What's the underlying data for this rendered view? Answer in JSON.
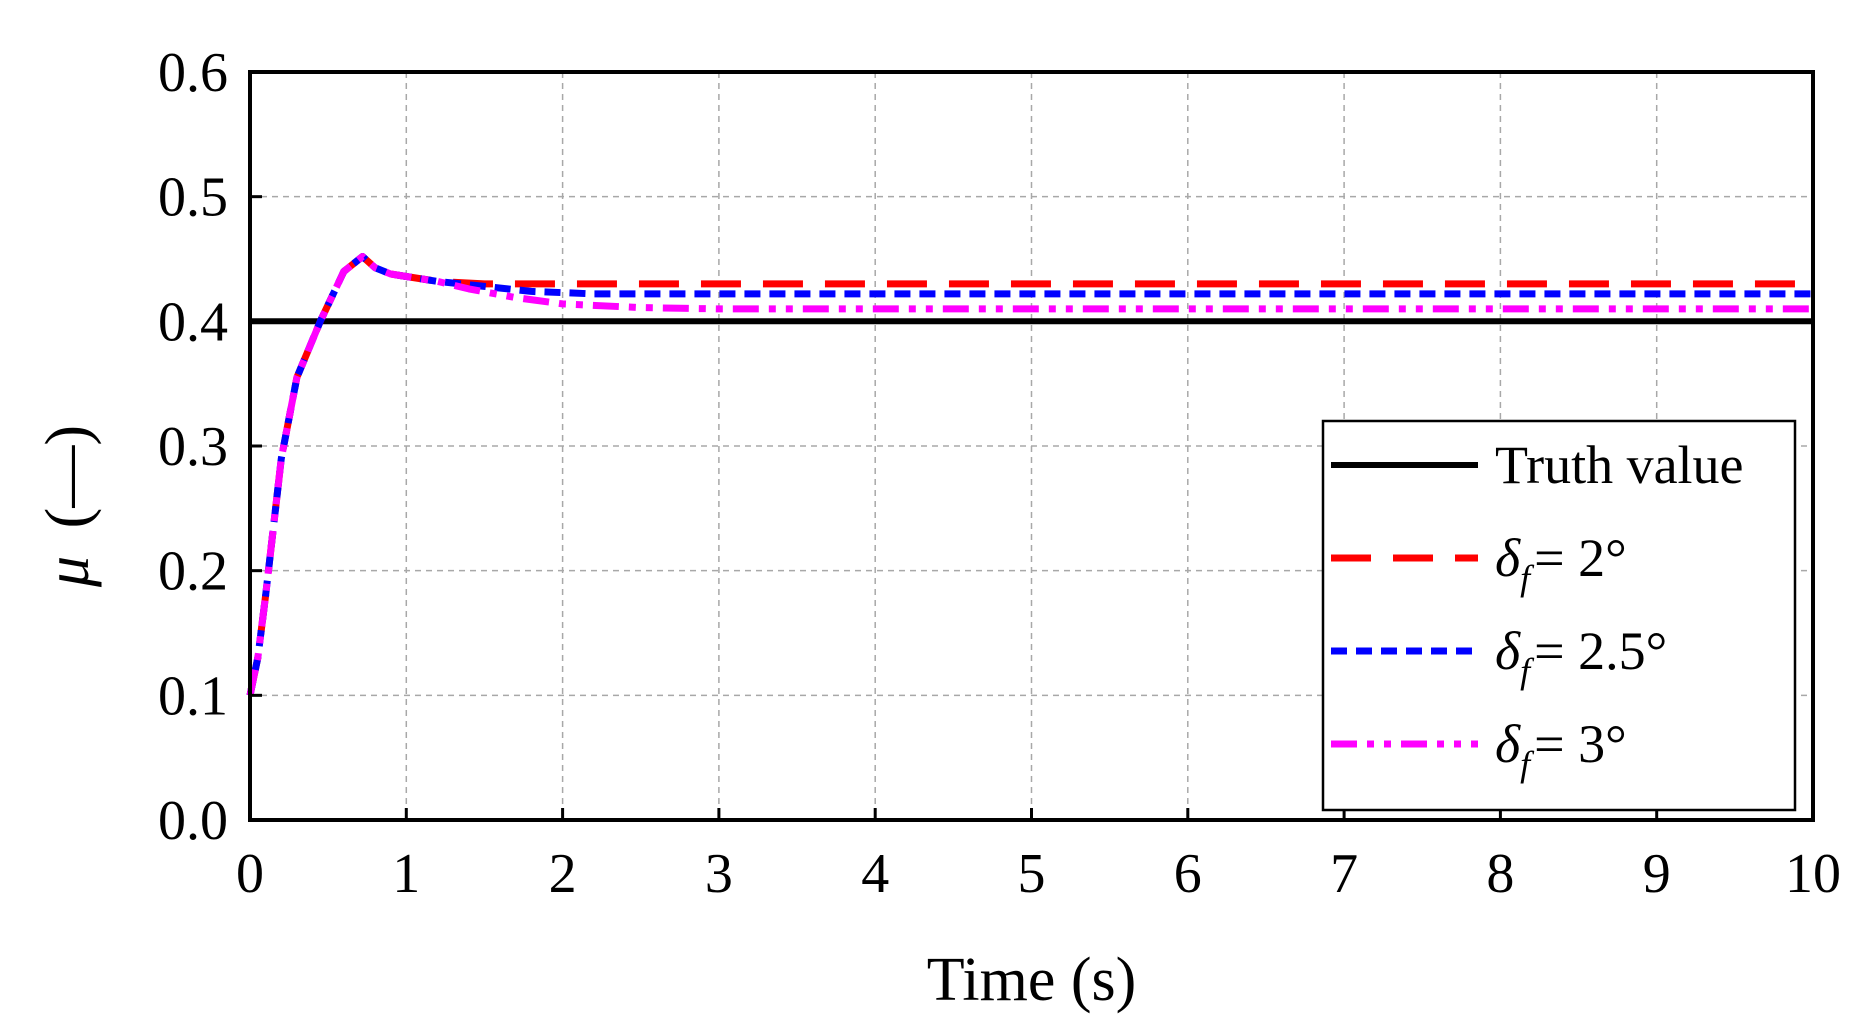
{
  "chart_data": {
    "type": "line",
    "title": "",
    "xlabel": "Time (s)",
    "ylabel_symbol": "μ",
    "ylabel_unit": "(—)",
    "xlim": [
      0,
      10
    ],
    "ylim": [
      0,
      0.6
    ],
    "xticks": [
      0,
      1,
      2,
      3,
      4,
      5,
      6,
      7,
      8,
      9,
      10
    ],
    "yticks": [
      0.0,
      0.1,
      0.2,
      0.3,
      0.4,
      0.5,
      0.6
    ],
    "xtick_labels": [
      "0",
      "1",
      "2",
      "3",
      "4",
      "5",
      "6",
      "7",
      "8",
      "9",
      "10"
    ],
    "ytick_labels": [
      "0.0",
      "0.1",
      "0.2",
      "0.3",
      "0.4",
      "0.5",
      "0.6"
    ],
    "grid": true,
    "legend_position": "bottom-right",
    "series": [
      {
        "name": "Truth value",
        "color": "#000000",
        "style": "solid",
        "x": [
          0,
          10
        ],
        "y": [
          0.4,
          0.4
        ]
      },
      {
        "name_symbol": "δ",
        "name_sub": "f",
        "name_value": "= 2°",
        "color": "#ff0000",
        "style": "dashed",
        "x": [
          0,
          0.05,
          0.1,
          0.2,
          0.3,
          0.45,
          0.6,
          0.72,
          0.8,
          0.9,
          1.0,
          1.2,
          1.5,
          2.0,
          3.0,
          10.0
        ],
        "y": [
          0.1,
          0.13,
          0.18,
          0.29,
          0.355,
          0.4,
          0.44,
          0.452,
          0.443,
          0.438,
          0.436,
          0.432,
          0.43,
          0.43,
          0.43,
          0.43
        ]
      },
      {
        "name_symbol": "δ",
        "name_sub": "f",
        "name_value": "= 2.5°",
        "color": "#0000ff",
        "style": "dotted",
        "x": [
          0,
          0.05,
          0.1,
          0.2,
          0.3,
          0.45,
          0.6,
          0.72,
          0.8,
          0.9,
          1.0,
          1.2,
          1.5,
          1.8,
          2.2,
          3.0,
          10.0
        ],
        "y": [
          0.1,
          0.13,
          0.18,
          0.29,
          0.355,
          0.4,
          0.44,
          0.452,
          0.443,
          0.438,
          0.436,
          0.432,
          0.428,
          0.424,
          0.422,
          0.422,
          0.422
        ]
      },
      {
        "name_symbol": "δ",
        "name_sub": "f",
        "name_value": "= 3°",
        "color": "#ff00ff",
        "style": "dashdot",
        "x": [
          0,
          0.05,
          0.1,
          0.2,
          0.3,
          0.45,
          0.6,
          0.72,
          0.8,
          0.9,
          1.0,
          1.2,
          1.4,
          1.7,
          2.0,
          2.5,
          3.0,
          10.0
        ],
        "y": [
          0.1,
          0.13,
          0.18,
          0.29,
          0.355,
          0.4,
          0.44,
          0.452,
          0.443,
          0.438,
          0.436,
          0.432,
          0.426,
          0.419,
          0.414,
          0.411,
          0.41,
          0.41
        ]
      }
    ]
  }
}
